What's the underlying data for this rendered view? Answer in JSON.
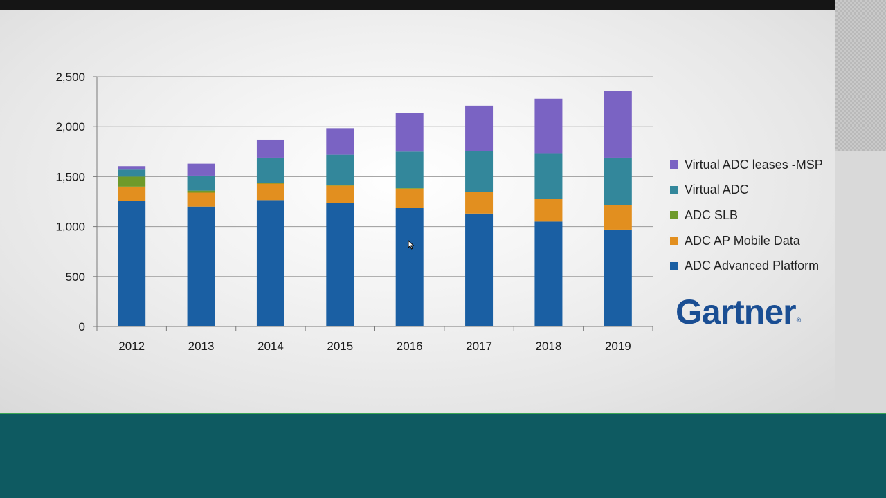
{
  "colors": {
    "platform": "#1a5fa3",
    "mobile": "#e28f1f",
    "slb": "#6e9a2a",
    "virtual": "#33879b",
    "msp": "#7a63c3",
    "gartner": "#1a4e93"
  },
  "logo": {
    "text": "Gartner",
    "reg": "®"
  },
  "chart_data": {
    "type": "bar",
    "stacked": true,
    "categories": [
      "2012",
      "2013",
      "2014",
      "2015",
      "2016",
      "2017",
      "2018",
      "2019"
    ],
    "ylim": [
      0,
      2500
    ],
    "yticks": [
      0,
      500,
      1000,
      1500,
      2000,
      2500
    ],
    "ytick_labels": [
      "0",
      "500",
      "1,000",
      "1,500",
      "2,000",
      "2,500"
    ],
    "grid": true,
    "legend_position": "right",
    "series": [
      {
        "name": "ADC Advanced Platform",
        "color_key": "platform",
        "values": [
          1260,
          1200,
          1265,
          1235,
          1190,
          1130,
          1050,
          970
        ]
      },
      {
        "name": "ADC AP Mobile Data",
        "color_key": "mobile",
        "values": [
          140,
          140,
          165,
          175,
          190,
          215,
          225,
          245
        ]
      },
      {
        "name": "ADC SLB",
        "color_key": "slb",
        "values": [
          100,
          20,
          10,
          5,
          5,
          5,
          0,
          0
        ]
      },
      {
        "name": "Virtual ADC",
        "color_key": "virtual",
        "values": [
          70,
          150,
          250,
          305,
          365,
          405,
          460,
          475
        ]
      },
      {
        "name": "Virtual ADC leases -MSP",
        "color_key": "msp",
        "values": [
          35,
          120,
          180,
          265,
          385,
          455,
          545,
          665
        ]
      }
    ]
  }
}
